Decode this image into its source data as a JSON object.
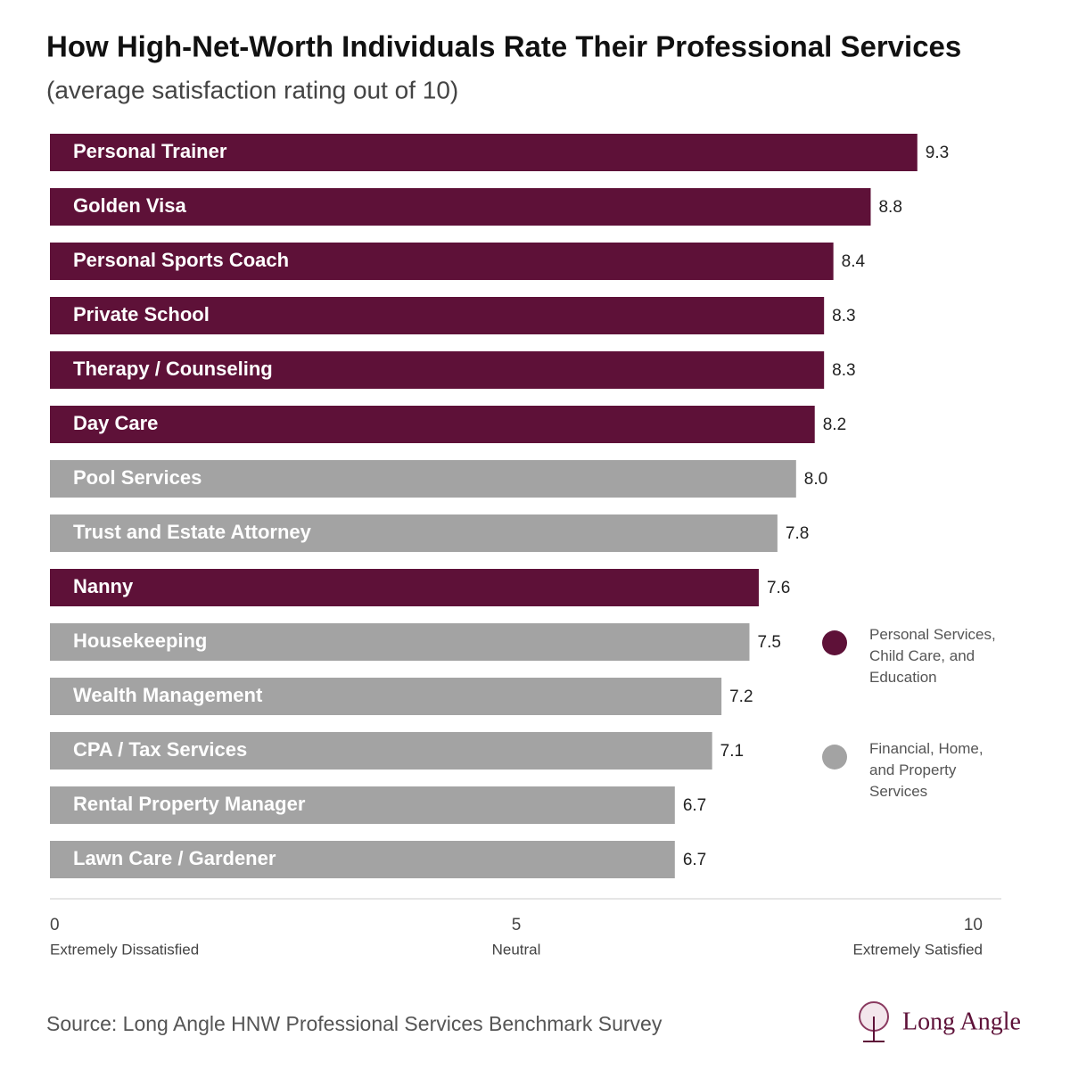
{
  "chart_data": {
    "type": "bar",
    "orientation": "horizontal",
    "title": "How High-Net-Worth Individuals Rate Their Professional Services",
    "subtitle": "(average satisfaction rating out of 10)",
    "categories": [
      "Personal Trainer",
      "Golden Visa",
      "Personal Sports Coach",
      "Private School",
      "Therapy / Counseling",
      "Day Care",
      "Pool Services",
      "Trust and Estate Attorney",
      "Nanny",
      "Housekeeping",
      "Wealth Management",
      "CPA / Tax Services",
      "Rental Property Manager",
      "Lawn Care / Gardener"
    ],
    "series": [
      {
        "name": "Personal Services, Child Care, and Education",
        "color": "#5e1138",
        "values": [
          9.3,
          8.8,
          8.4,
          8.3,
          8.3,
          8.2,
          null,
          null,
          7.6,
          null,
          null,
          null,
          null,
          null
        ],
        "value_labels": [
          "9.3",
          "8.8",
          "8.4",
          "8.3",
          "8.3",
          "8.2",
          null,
          null,
          "7.6",
          null,
          null,
          null,
          null,
          null
        ]
      },
      {
        "name": "Financial, Home, and Property Services",
        "color": "#a3a3a3",
        "values": [
          null,
          null,
          null,
          null,
          null,
          null,
          8.0,
          7.8,
          null,
          7.5,
          7.2,
          7.1,
          6.7,
          6.7
        ],
        "value_labels": [
          null,
          null,
          null,
          null,
          null,
          null,
          "8.0",
          "7.8",
          null,
          "7.5",
          "7.2",
          "7.1",
          "6.7",
          "6.7"
        ]
      }
    ],
    "xlim": [
      0,
      10
    ],
    "xticks": [
      0,
      5,
      10
    ],
    "xtick_captions": [
      "Extremely Dissatisfied",
      "Neutral",
      "Extremely Satisfied"
    ],
    "grid": false,
    "source": "Source: Long Angle HNW Professional Services Benchmark Survey",
    "logo": "Long Angle"
  }
}
